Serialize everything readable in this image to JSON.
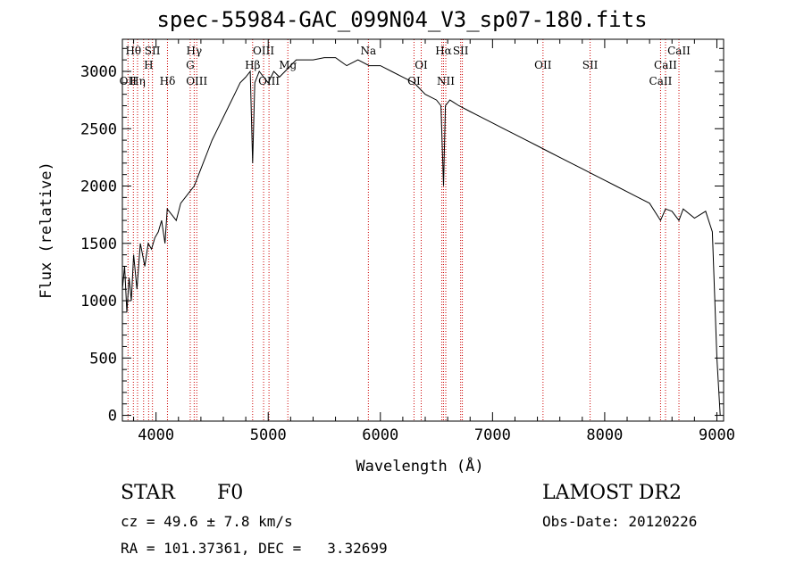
{
  "chart_data": {
    "type": "line",
    "title": "spec-55984-GAC_099N04_V3_sp07-180.fits",
    "xlabel": "Wavelength (Å)",
    "ylabel": "Flux (relative)",
    "xlim": [
      3700,
      9060
    ],
    "ylim": [
      -50,
      3280
    ],
    "xticks": [
      4000,
      5000,
      6000,
      7000,
      8000,
      9000
    ],
    "yticks": [
      0,
      500,
      1000,
      1500,
      2000,
      2500,
      3000
    ],
    "grid": false,
    "line_color": "#000000",
    "marker_color": "#cc0000",
    "series": [
      {
        "x": [
          3700,
          3720,
          3740,
          3760,
          3780,
          3800,
          3830,
          3860,
          3900,
          3930,
          3960,
          3990,
          4020,
          4050,
          4080,
          4100,
          4140,
          4180,
          4220,
          4260,
          4300,
          4340,
          4380,
          4420,
          4460,
          4500,
          4550,
          4600,
          4650,
          4700,
          4750,
          4800,
          4840,
          4861,
          4880,
          4920,
          4960,
          5000,
          5050,
          5100,
          5150,
          5200,
          5250,
          5300,
          5400,
          5500,
          5600,
          5700,
          5800,
          5900,
          6000,
          6100,
          6200,
          6300,
          6400,
          6500,
          6540,
          6563,
          6580,
          6620,
          6700,
          6800,
          6900,
          7000,
          7100,
          7200,
          7300,
          7400,
          7500,
          7600,
          7700,
          7800,
          7900,
          8000,
          8100,
          8200,
          8300,
          8400,
          8498,
          8542,
          8600,
          8662,
          8700,
          8800,
          8900,
          8960,
          9000,
          9030
        ],
        "y": [
          1100,
          1300,
          900,
          1200,
          1000,
          1400,
          1100,
          1500,
          1300,
          1500,
          1450,
          1550,
          1600,
          1700,
          1500,
          1800,
          1750,
          1700,
          1850,
          1900,
          1950,
          2000,
          2100,
          2200,
          2300,
          2400,
          2500,
          2600,
          2700,
          2800,
          2900,
          2950,
          3000,
          2200,
          2900,
          3000,
          2950,
          2900,
          3000,
          2950,
          3000,
          3050,
          3100,
          3100,
          3100,
          3120,
          3120,
          3050,
          3100,
          3050,
          3050,
          3000,
          2950,
          2900,
          2800,
          2750,
          2700,
          2000,
          2700,
          2750,
          2700,
          2650,
          2600,
          2550,
          2500,
          2450,
          2400,
          2350,
          2300,
          2250,
          2200,
          2150,
          2100,
          2050,
          2000,
          1950,
          1900,
          1850,
          1700,
          1800,
          1780,
          1700,
          1800,
          1720,
          1780,
          1600,
          500,
          0
        ]
      }
    ],
    "lines": [
      {
        "wl": 3750,
        "labels": [
          {
            "text": "OII",
            "row": 3
          }
        ]
      },
      {
        "wl": 3798,
        "labels": [
          {
            "text": "Hθ",
            "row": 1
          }
        ]
      },
      {
        "wl": 3835,
        "labels": [
          {
            "text": "Hη",
            "row": 3
          }
        ]
      },
      {
        "wl": 3889,
        "labels": []
      },
      {
        "wl": 3934,
        "labels": [
          {
            "text": "H",
            "row": 2
          }
        ]
      },
      {
        "wl": 3968,
        "labels": [
          {
            "text": "SII",
            "row": 1
          }
        ]
      },
      {
        "wl": 4102,
        "labels": [
          {
            "text": "Hδ",
            "row": 3
          }
        ]
      },
      {
        "wl": 4305,
        "labels": [
          {
            "text": "G",
            "row": 2
          }
        ]
      },
      {
        "wl": 4340,
        "labels": [
          {
            "text": "Hγ",
            "row": 1
          }
        ]
      },
      {
        "wl": 4363,
        "labels": [
          {
            "text": "OIII",
            "row": 3
          }
        ]
      },
      {
        "wl": 4861,
        "labels": [
          {
            "text": "Hβ",
            "row": 2
          }
        ]
      },
      {
        "wl": 4959,
        "labels": [
          {
            "text": "OIII",
            "row": 1
          }
        ]
      },
      {
        "wl": 5007,
        "labels": [
          {
            "text": "OIII",
            "row": 3
          }
        ]
      },
      {
        "wl": 5175,
        "labels": [
          {
            "text": "Mg",
            "row": 2
          }
        ]
      },
      {
        "wl": 5893,
        "labels": [
          {
            "text": "Na",
            "row": 1
          }
        ]
      },
      {
        "wl": 6300,
        "labels": [
          {
            "text": "OI",
            "row": 3
          }
        ]
      },
      {
        "wl": 6364,
        "labels": [
          {
            "text": "OI",
            "row": 2
          }
        ]
      },
      {
        "wl": 6548,
        "labels": []
      },
      {
        "wl": 6563,
        "labels": [
          {
            "text": "Hα",
            "row": 1
          }
        ]
      },
      {
        "wl": 6583,
        "labels": [
          {
            "text": "NII",
            "row": 3
          }
        ]
      },
      {
        "wl": 6716,
        "labels": [
          {
            "text": "SII",
            "row": 1
          }
        ]
      },
      {
        "wl": 6731,
        "labels": []
      },
      {
        "wl": 7450,
        "labels": [
          {
            "text": "OII",
            "row": 2
          }
        ]
      },
      {
        "wl": 7870,
        "labels": [
          {
            "text": "SII",
            "row": 2
          }
        ]
      },
      {
        "wl": 8498,
        "labels": [
          {
            "text": "CaII",
            "row": 3
          }
        ]
      },
      {
        "wl": 8542,
        "labels": [
          {
            "text": "CaII",
            "row": 2
          }
        ]
      },
      {
        "wl": 8662,
        "labels": [
          {
            "text": "CaII",
            "row": 1
          }
        ]
      }
    ]
  },
  "info": {
    "class": "STAR",
    "subclass": "F0",
    "survey": "LAMOST DR2",
    "cz": "cz = 49.6 ± 7.8 km/s",
    "obs_date": "Obs-Date: 20120226",
    "coords": "RA = 101.37361, DEC =   3.32699"
  }
}
